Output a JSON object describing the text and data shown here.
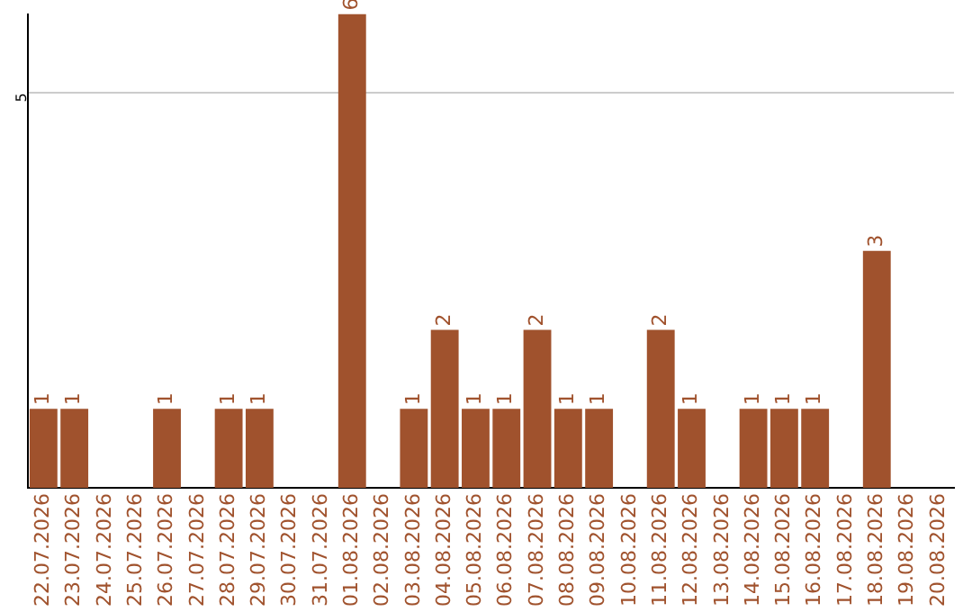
{
  "chart_data": {
    "type": "bar",
    "categories": [
      "22.07.2026",
      "23.07.2026",
      "24.07.2026",
      "25.07.2026",
      "26.07.2026",
      "27.07.2026",
      "28.07.2026",
      "29.07.2026",
      "30.07.2026",
      "31.07.2026",
      "01.08.2026",
      "02.08.2026",
      "03.08.2026",
      "04.08.2026",
      "05.08.2026",
      "06.08.2026",
      "07.08.2026",
      "08.08.2026",
      "09.08.2026",
      "10.08.2026",
      "11.08.2026",
      "12.08.2026",
      "13.08.2026",
      "14.08.2026",
      "15.08.2026",
      "16.08.2026",
      "17.08.2026",
      "18.08.2026",
      "19.08.2026",
      "20.08.2026"
    ],
    "values": [
      1,
      1,
      0,
      0,
      1,
      0,
      1,
      1,
      0,
      0,
      6,
      0,
      1,
      2,
      1,
      1,
      2,
      1,
      1,
      0,
      2,
      1,
      0,
      1,
      1,
      1,
      0,
      3,
      0,
      0
    ],
    "value_labels": [
      "1",
      "1",
      null,
      null,
      "1",
      null,
      "1",
      "1",
      null,
      null,
      "6",
      null,
      "1",
      "2",
      "1",
      "1",
      "2",
      "1",
      "1",
      null,
      "2",
      "1",
      null,
      "1",
      "1",
      "1",
      null,
      "3",
      null,
      null
    ],
    "color": "#a0522d",
    "ylim": [
      0,
      6
    ],
    "yticks": [
      5
    ],
    "grid": "y",
    "legend": false
  }
}
